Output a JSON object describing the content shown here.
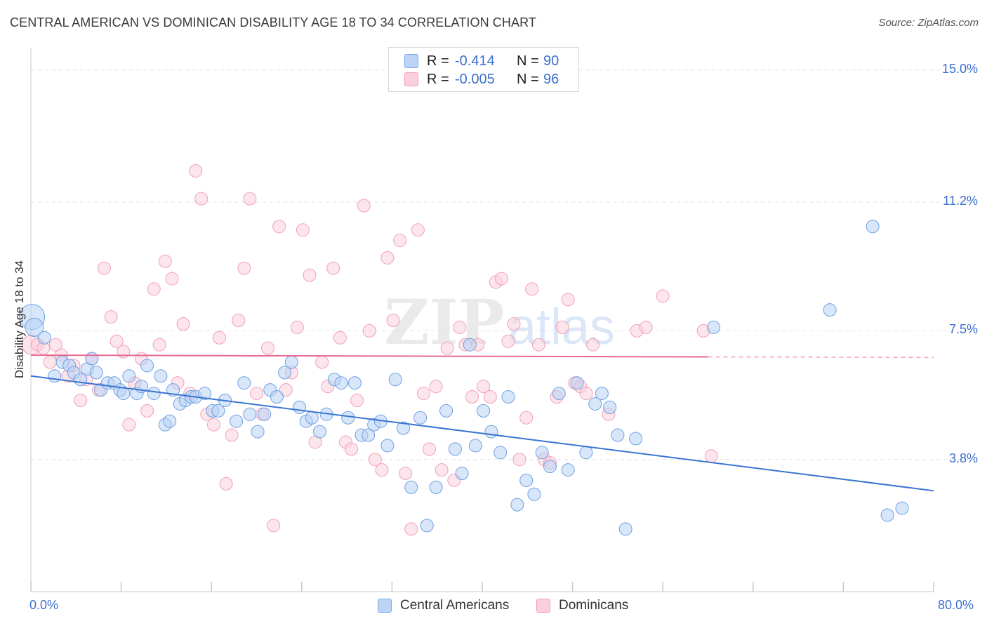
{
  "title": "CENTRAL AMERICAN VS DOMINICAN DISABILITY AGE 18 TO 34 CORRELATION CHART",
  "source": "Source: ZipAtlas.com",
  "watermark": "ZIPatlas",
  "legend": {
    "rows": [
      {
        "r_label": "R =",
        "r_value": "-0.414",
        "n_label": "N =",
        "n_value": "90",
        "color": "#7aaae8",
        "fill": "#bcd5f5"
      },
      {
        "r_label": "R =",
        "r_value": "-0.005",
        "n_label": "N =",
        "n_value": "96",
        "color": "#f0a0b8",
        "fill": "#fbd0dd"
      }
    ]
  },
  "bottom_legend": [
    "Central Americans",
    "Dominicans"
  ],
  "chart_data": {
    "type": "scatter",
    "ylabel": "Disability Age 18 to 34",
    "xlim": [
      0,
      80
    ],
    "ylim": [
      0,
      15.5
    ],
    "x_tick_labels": [
      "0.0%",
      "80.0%"
    ],
    "y_ticks": [
      3.8,
      7.5,
      11.2,
      15.0
    ],
    "y_tick_labels": [
      "3.8%",
      "7.5%",
      "11.2%",
      "15.0%"
    ],
    "grid": true,
    "series": [
      {
        "name": "Central Americans",
        "color": "#3a75d0",
        "fill": "#b8d2f5",
        "trend": {
          "x0": 0,
          "y0": 6.2,
          "x1": 80,
          "y1": 2.9
        },
        "points": [
          [
            0.1,
            7.9
          ],
          [
            0.3,
            7.6
          ],
          [
            1.2,
            7.3
          ],
          [
            2.1,
            6.2
          ],
          [
            2.8,
            6.6
          ],
          [
            3.4,
            6.5
          ],
          [
            3.8,
            6.3
          ],
          [
            4.4,
            6.1
          ],
          [
            5.0,
            6.4
          ],
          [
            5.4,
            6.7
          ],
          [
            5.8,
            6.3
          ],
          [
            6.2,
            5.8
          ],
          [
            6.8,
            6.0
          ],
          [
            7.4,
            6.0
          ],
          [
            7.9,
            5.8
          ],
          [
            8.2,
            5.7
          ],
          [
            8.7,
            6.2
          ],
          [
            9.4,
            5.7
          ],
          [
            9.8,
            5.9
          ],
          [
            10.3,
            6.5
          ],
          [
            10.9,
            5.7
          ],
          [
            11.5,
            6.2
          ],
          [
            11.9,
            4.8
          ],
          [
            12.3,
            4.9
          ],
          [
            12.6,
            5.8
          ],
          [
            13.2,
            5.4
          ],
          [
            13.7,
            5.5
          ],
          [
            14.2,
            5.6
          ],
          [
            14.6,
            5.6
          ],
          [
            15.4,
            5.7
          ],
          [
            16.1,
            5.2
          ],
          [
            16.6,
            5.2
          ],
          [
            17.2,
            5.5
          ],
          [
            18.2,
            4.9
          ],
          [
            18.9,
            6.0
          ],
          [
            19.4,
            5.1
          ],
          [
            20.1,
            4.6
          ],
          [
            20.7,
            5.1
          ],
          [
            21.2,
            5.8
          ],
          [
            21.8,
            5.6
          ],
          [
            22.5,
            6.3
          ],
          [
            23.1,
            6.6
          ],
          [
            23.8,
            5.3
          ],
          [
            24.4,
            4.9
          ],
          [
            24.9,
            5.0
          ],
          [
            25.6,
            4.6
          ],
          [
            26.2,
            5.1
          ],
          [
            26.9,
            6.1
          ],
          [
            27.5,
            6.0
          ],
          [
            28.1,
            5.0
          ],
          [
            28.7,
            6.0
          ],
          [
            29.3,
            4.5
          ],
          [
            29.9,
            4.5
          ],
          [
            30.4,
            4.8
          ],
          [
            31.0,
            4.9
          ],
          [
            31.6,
            4.2
          ],
          [
            32.3,
            6.1
          ],
          [
            33.0,
            4.7
          ],
          [
            33.7,
            3.0
          ],
          [
            34.5,
            5.0
          ],
          [
            35.1,
            1.9
          ],
          [
            35.9,
            3.0
          ],
          [
            36.8,
            5.2
          ],
          [
            37.6,
            4.1
          ],
          [
            38.2,
            3.4
          ],
          [
            38.9,
            7.1
          ],
          [
            39.4,
            4.2
          ],
          [
            40.1,
            5.2
          ],
          [
            40.8,
            4.6
          ],
          [
            41.6,
            4.0
          ],
          [
            42.3,
            5.6
          ],
          [
            43.1,
            2.5
          ],
          [
            43.9,
            3.2
          ],
          [
            44.6,
            2.8
          ],
          [
            45.3,
            4.0
          ],
          [
            46.0,
            3.6
          ],
          [
            46.8,
            5.7
          ],
          [
            47.6,
            3.5
          ],
          [
            48.4,
            6.0
          ],
          [
            49.2,
            4.0
          ],
          [
            50.0,
            5.4
          ],
          [
            50.6,
            5.7
          ],
          [
            51.3,
            5.3
          ],
          [
            52.0,
            4.5
          ],
          [
            52.7,
            1.8
          ],
          [
            53.6,
            4.4
          ],
          [
            60.5,
            7.6
          ],
          [
            70.8,
            8.1
          ],
          [
            74.6,
            10.5
          ],
          [
            75.9,
            2.2
          ],
          [
            77.2,
            2.4
          ]
        ]
      },
      {
        "name": "Dominicans",
        "color": "#e86890",
        "fill": "#fbd0dd",
        "trend": {
          "x0": 0,
          "y0": 6.8,
          "x1": 60,
          "y1": 6.75
        },
        "dashed_to": 80,
        "points": [
          [
            0.1,
            7.1
          ],
          [
            0.6,
            7.1
          ],
          [
            1.1,
            7.0
          ],
          [
            1.7,
            6.6
          ],
          [
            2.2,
            7.1
          ],
          [
            2.7,
            6.8
          ],
          [
            3.3,
            6.2
          ],
          [
            3.8,
            6.5
          ],
          [
            4.4,
            5.5
          ],
          [
            4.9,
            6.1
          ],
          [
            5.4,
            6.7
          ],
          [
            6.0,
            5.8
          ],
          [
            6.5,
            9.3
          ],
          [
            7.1,
            7.9
          ],
          [
            7.6,
            7.2
          ],
          [
            8.2,
            6.9
          ],
          [
            8.7,
            4.8
          ],
          [
            9.2,
            6.0
          ],
          [
            9.8,
            6.7
          ],
          [
            10.3,
            5.2
          ],
          [
            10.9,
            8.7
          ],
          [
            11.4,
            7.1
          ],
          [
            11.9,
            9.5
          ],
          [
            12.5,
            9.0
          ],
          [
            13.0,
            6.0
          ],
          [
            13.5,
            7.7
          ],
          [
            14.1,
            5.7
          ],
          [
            14.6,
            12.1
          ],
          [
            15.1,
            11.3
          ],
          [
            15.6,
            5.1
          ],
          [
            16.2,
            4.8
          ],
          [
            16.7,
            7.3
          ],
          [
            17.3,
            3.1
          ],
          [
            17.8,
            4.5
          ],
          [
            18.4,
            7.8
          ],
          [
            18.9,
            9.3
          ],
          [
            19.4,
            11.3
          ],
          [
            20.0,
            5.7
          ],
          [
            20.5,
            5.1
          ],
          [
            21.0,
            7.0
          ],
          [
            21.5,
            1.9
          ],
          [
            22.0,
            10.5
          ],
          [
            22.6,
            5.8
          ],
          [
            23.1,
            6.3
          ],
          [
            23.6,
            7.6
          ],
          [
            24.1,
            10.4
          ],
          [
            24.7,
            9.1
          ],
          [
            25.2,
            4.3
          ],
          [
            25.8,
            6.6
          ],
          [
            26.3,
            5.9
          ],
          [
            26.8,
            9.3
          ],
          [
            27.4,
            7.3
          ],
          [
            27.9,
            4.3
          ],
          [
            28.4,
            4.1
          ],
          [
            28.9,
            5.5
          ],
          [
            29.5,
            11.1
          ],
          [
            30.0,
            7.5
          ],
          [
            30.5,
            3.8
          ],
          [
            31.1,
            3.5
          ],
          [
            31.6,
            9.6
          ],
          [
            32.1,
            7.8
          ],
          [
            32.7,
            10.1
          ],
          [
            33.2,
            3.4
          ],
          [
            33.7,
            1.8
          ],
          [
            34.3,
            10.4
          ],
          [
            34.8,
            5.7
          ],
          [
            35.3,
            4.1
          ],
          [
            35.9,
            5.9
          ],
          [
            36.4,
            3.5
          ],
          [
            36.9,
            7.0
          ],
          [
            37.5,
            3.2
          ],
          [
            38.0,
            7.6
          ],
          [
            38.5,
            7.1
          ],
          [
            39.1,
            5.6
          ],
          [
            39.6,
            7.1
          ],
          [
            40.1,
            5.9
          ],
          [
            40.7,
            5.6
          ],
          [
            41.2,
            8.9
          ],
          [
            41.7,
            9.0
          ],
          [
            42.3,
            7.2
          ],
          [
            42.8,
            7.7
          ],
          [
            43.3,
            3.8
          ],
          [
            43.9,
            5.0
          ],
          [
            44.4,
            8.7
          ],
          [
            45.0,
            7.1
          ],
          [
            45.5,
            3.8
          ],
          [
            46.0,
            3.7
          ],
          [
            46.6,
            5.6
          ],
          [
            47.1,
            7.6
          ],
          [
            47.6,
            8.4
          ],
          [
            48.2,
            6.0
          ],
          [
            48.7,
            5.9
          ],
          [
            49.2,
            5.7
          ],
          [
            49.8,
            7.1
          ],
          [
            51.2,
            5.1
          ],
          [
            53.7,
            7.5
          ],
          [
            54.5,
            7.6
          ],
          [
            56.0,
            8.5
          ],
          [
            59.6,
            7.5
          ],
          [
            60.3,
            3.9
          ]
        ]
      }
    ]
  }
}
